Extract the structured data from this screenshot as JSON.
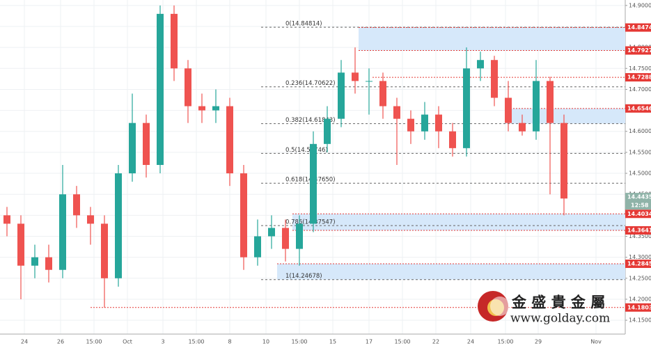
{
  "chart_data": {
    "type": "candlestick",
    "x": [
      0,
      1,
      2,
      3,
      4,
      5,
      6,
      7,
      8,
      9,
      10,
      11,
      12,
      13,
      14,
      15,
      16,
      17,
      18,
      19,
      20,
      21,
      22,
      23,
      24,
      25,
      26,
      27,
      28,
      29,
      30,
      31,
      32,
      33,
      34,
      35,
      36,
      37,
      38,
      39,
      40
    ],
    "open": [
      14.4,
      14.38,
      14.28,
      14.3,
      14.27,
      14.45,
      14.4,
      14.38,
      14.25,
      14.5,
      14.62,
      14.52,
      14.88,
      14.75,
      14.66,
      14.65,
      14.66,
      14.5,
      14.3,
      14.35,
      14.37,
      14.32,
      14.38,
      14.57,
      14.63,
      14.74,
      14.72,
      14.72,
      14.66,
      14.63,
      14.6,
      14.64,
      14.6,
      14.56,
      14.75,
      14.77,
      14.68,
      14.62,
      14.6,
      14.72,
      14.62
    ],
    "high": [
      14.42,
      14.4,
      14.33,
      14.33,
      14.52,
      14.47,
      14.42,
      14.4,
      14.52,
      14.69,
      14.64,
      14.9,
      14.9,
      14.77,
      14.69,
      14.7,
      14.68,
      14.52,
      14.39,
      14.4,
      14.39,
      14.4,
      14.6,
      14.66,
      14.77,
      14.8,
      14.75,
      14.74,
      14.68,
      14.65,
      14.67,
      14.66,
      14.62,
      14.8,
      14.79,
      14.78,
      14.72,
      14.64,
      14.77,
      14.73,
      14.64
    ],
    "low": [
      14.35,
      14.2,
      14.25,
      14.24,
      14.25,
      14.37,
      14.33,
      14.18,
      14.23,
      14.48,
      14.49,
      14.5,
      14.72,
      14.62,
      14.62,
      14.62,
      14.47,
      14.27,
      14.28,
      14.32,
      14.29,
      14.28,
      14.36,
      14.55,
      14.61,
      14.69,
      14.64,
      14.63,
      14.52,
      14.57,
      14.58,
      14.56,
      14.54,
      14.54,
      14.72,
      14.66,
      14.6,
      14.59,
      14.58,
      14.45,
      14.4
    ],
    "close": [
      14.38,
      14.28,
      14.3,
      14.27,
      14.45,
      14.4,
      14.38,
      14.25,
      14.5,
      14.62,
      14.52,
      14.88,
      14.75,
      14.66,
      14.65,
      14.66,
      14.5,
      14.3,
      14.35,
      14.37,
      14.32,
      14.38,
      14.57,
      14.63,
      14.74,
      14.72,
      14.72,
      14.66,
      14.63,
      14.6,
      14.64,
      14.6,
      14.56,
      14.75,
      14.77,
      14.68,
      14.62,
      14.6,
      14.72,
      14.62,
      14.44
    ],
    "up_color": "#26a69a",
    "down_color": "#ef5350",
    "xlim": [
      -0.5,
      44.4
    ],
    "xticks": [
      {
        "value": 1.25,
        "label": "24"
      },
      {
        "value": 3.85,
        "label": "26"
      },
      {
        "value": 6.25,
        "label": "15:00"
      },
      {
        "value": 8.65,
        "label": "Oct"
      },
      {
        "value": 11.2,
        "label": "3"
      },
      {
        "value": 13.6,
        "label": "15:00"
      },
      {
        "value": 16,
        "label": "8"
      },
      {
        "value": 18.6,
        "label": "10"
      },
      {
        "value": 21,
        "label": "15:00"
      },
      {
        "value": 23.4,
        "label": "15"
      },
      {
        "value": 26,
        "label": "17"
      },
      {
        "value": 28.4,
        "label": "15:00"
      },
      {
        "value": 30.8,
        "label": "22"
      },
      {
        "value": 33.3,
        "label": "24"
      },
      {
        "value": 35.8,
        "label": "15:00"
      },
      {
        "value": 38.15,
        "label": "29"
      },
      {
        "value": 42.3,
        "label": "Nov"
      }
    ],
    "ylim": [
      14.117,
      14.913
    ],
    "yticks": [
      {
        "value": 14.15,
        "label": "14.15000"
      },
      {
        "value": 14.2,
        "label": "14.20000"
      },
      {
        "value": 14.25,
        "label": "14.25000"
      },
      {
        "value": 14.3,
        "label": "14.30000"
      },
      {
        "value": 14.35,
        "label": "14.35000"
      },
      {
        "value": 14.4,
        "label": "14.40000"
      },
      {
        "value": 14.45,
        "label": "14.45000"
      },
      {
        "value": 14.5,
        "label": "14.50000"
      },
      {
        "value": 14.55,
        "label": "14.55000"
      },
      {
        "value": 14.6,
        "label": "14.60000"
      },
      {
        "value": 14.65,
        "label": "14.65000"
      },
      {
        "value": 14.7,
        "label": "14.70000"
      },
      {
        "value": 14.75,
        "label": "14.75000"
      },
      {
        "value": 14.8,
        "label": "14.80000"
      },
      {
        "value": 14.85,
        "label": "14.85000"
      },
      {
        "value": 14.9,
        "label": "14.90000"
      }
    ],
    "grid": true,
    "fib_levels": [
      {
        "value": 14.84814,
        "label": "0(14.84814)",
        "start": 18.25
      },
      {
        "value": 14.70622,
        "label": "0.236(14.70622)",
        "start": 18.25
      },
      {
        "value": 14.61843,
        "label": "0.382(14.61843)",
        "start": 18.25
      },
      {
        "value": 14.54746,
        "label": "0.5(14.54746)",
        "start": 18.25
      },
      {
        "value": 14.4765,
        "label": "0.618(14.47650)",
        "start": 18.25
      },
      {
        "value": 14.37547,
        "label": "0.786(14.37547)",
        "start": 18.25
      },
      {
        "value": 14.24678,
        "label": "1(14.24678)",
        "start": 18.25
      }
    ],
    "levels": [
      {
        "value": 14.84741,
        "start": 25.25
      },
      {
        "value": 14.79276,
        "start": 25.25
      },
      {
        "value": 14.72882,
        "start": 26.25
      },
      {
        "value": 14.65461,
        "start": 35.75
      },
      {
        "value": 14.40345,
        "start": 20.5
      },
      {
        "value": 14.36414,
        "start": 20.5
      },
      {
        "value": 14.28455,
        "start": 19.4
      },
      {
        "value": 14.18036,
        "start": 6
      }
    ],
    "level_color": "#e53935",
    "zones": [
      {
        "values": [
          14.84741,
          14.79276
        ],
        "start": 25.25
      },
      {
        "values": [
          14.65461,
          14.61843
        ],
        "start": 35.75
      },
      {
        "values": [
          14.40345,
          14.36414
        ],
        "start": 20.5
      },
      {
        "values": [
          14.28455,
          14.24678
        ],
        "start": 19.4
      }
    ],
    "zone_color": "#d6e8fa",
    "last_price": 14.44351,
    "countdown": "12:58"
  },
  "logo": {
    "name": "金 盛 貴 金 屬",
    "url": "www.golday.com"
  }
}
